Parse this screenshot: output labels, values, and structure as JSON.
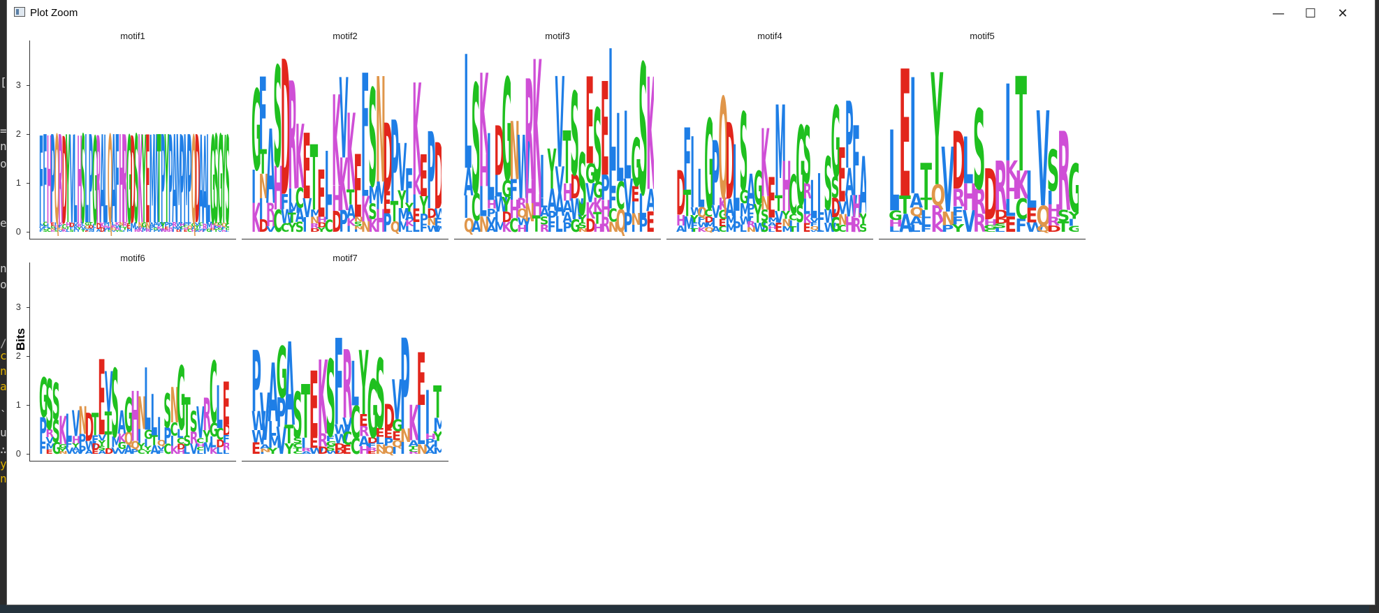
{
  "window": {
    "title": "Plot Zoom"
  },
  "controls": {
    "minimize": "—",
    "maximize": "☐",
    "close": "✕"
  },
  "left_strip_chars": [
    "[",
    "=",
    "n",
    "o",
    "e",
    "n",
    "o",
    "/",
    "c",
    "n",
    "a",
    "`",
    "u",
    "∴",
    "y",
    "n"
  ],
  "y_axis": {
    "label": "Bits",
    "ticks": [
      "3",
      "2",
      "1",
      "0"
    ]
  },
  "colors": {
    "green": "#1fc01f",
    "blue": "#1e7ee6",
    "red": "#e2261c",
    "orange": "#e0964a",
    "magenta": "#cf4fd6",
    "olive": "#b6a81a",
    "teal": "#1fb3a6"
  },
  "chart_data": {
    "type": "sequence-logo",
    "ylabel": "Bits",
    "ylim": [
      0,
      4
    ],
    "panels": [
      {
        "title": "motif1",
        "total_height_approx": 2.0,
        "letters": "FFHPQRDYVLHSLPGRALQAFHRGDSKYEMWTPYPAMPMPQDAALGSGYS"
      },
      {
        "title": "motif2",
        "total_height_approx": 3.6,
        "letters": "GFASDRKETELKVKEFSNDPVFKEPD"
      },
      {
        "title": "motif3",
        "total_height_approx": 3.8,
        "letters": "LSKLDGNWRKIYVTSSESELLLGSK"
      },
      {
        "title": "motif4",
        "total_height_approx": 2.8,
        "letters": "DFILGPQDLSAGKEMHCGSLISGEPFA"
      },
      {
        "title": "motif5",
        "total_height_approx": 3.5,
        "letters": "LEITYVDLSDRITLVSRG"
      },
      {
        "title": "motif6",
        "total_height_approx": 2.1,
        "letters": "GSSKLVNDTEVSAGHNLLISNGTSVRCLE"
      },
      {
        "title": "motif7",
        "total_height_approx": 2.4,
        "letters": "PVAGASTEKSFRLYGSDVPKEIT"
      }
    ]
  }
}
